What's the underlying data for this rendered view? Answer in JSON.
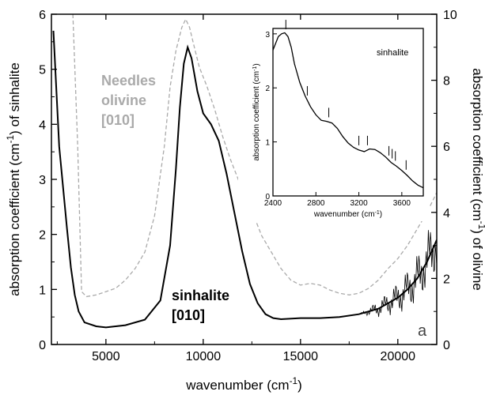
{
  "chart_data": [
    {
      "type": "line",
      "xlabel": "wavenumber (cm",
      "xlabel_sup": "-1",
      "xlabel_end": ")",
      "ylabel_left": "absorption coefficient (cm",
      "ylabel_left_sup": "-1",
      "ylabel_left_end": ") of sinhalite",
      "ylabel_right": "absorption coefficient (cm",
      "ylabel_right_sup": "-1",
      "ylabel_right_end": ") of olivine",
      "xlim": [
        2200,
        22000
      ],
      "ylim_left": [
        0,
        6
      ],
      "ylim_right": [
        0,
        10
      ],
      "x_ticks": [
        5000,
        10000,
        15000,
        20000
      ],
      "x_tick_labels": [
        "5000",
        "10000",
        "15000",
        "20000"
      ],
      "y_left_ticks": [
        0,
        1,
        2,
        3,
        4,
        5,
        6
      ],
      "y_left_tick_labels": [
        "0",
        "1",
        "2",
        "3",
        "4",
        "5",
        "6"
      ],
      "y_right_ticks": [
        0,
        2,
        4,
        6,
        8,
        10
      ],
      "y_right_tick_labels": [
        "0",
        "2",
        "4",
        "6",
        "8",
        "10"
      ],
      "panel_label": "a",
      "series": [
        {
          "name": "sinhalite [010]",
          "axis": "left",
          "color": "#000000",
          "style": "solid",
          "x": [
            2300,
            2600,
            3000,
            3200,
            3400,
            3600,
            3900,
            4500,
            5000,
            6000,
            7000,
            7800,
            8300,
            8600,
            8800,
            9000,
            9200,
            9400,
            9700,
            10000,
            10400,
            10800,
            11200,
            11600,
            12000,
            12400,
            12800,
            13200,
            13600,
            14000,
            15000,
            16000,
            17000,
            18000,
            19000,
            20000,
            20500,
            21000,
            21500,
            22000
          ],
          "y": [
            5.7,
            3.6,
            2.1,
            1.4,
            0.9,
            0.6,
            0.4,
            0.33,
            0.31,
            0.35,
            0.45,
            0.8,
            1.8,
            3.2,
            4.3,
            5.1,
            5.4,
            5.2,
            4.6,
            4.2,
            4.0,
            3.7,
            3.1,
            2.4,
            1.7,
            1.1,
            0.75,
            0.55,
            0.48,
            0.46,
            0.48,
            0.48,
            0.5,
            0.55,
            0.65,
            0.85,
            1.0,
            1.2,
            1.5,
            1.9
          ]
        },
        {
          "name": "Needles olivine [010]",
          "axis": "right",
          "color": "#aaaaaa",
          "style": "dashed",
          "x": [
            3300,
            3550,
            3750,
            4000,
            4500,
            5000,
            5500,
            6000,
            6500,
            7000,
            7500,
            8000,
            8300,
            8600,
            8900,
            9100,
            9300,
            9500,
            9800,
            10200,
            10600,
            11000,
            11400,
            11800,
            12200,
            12600,
            13000,
            13500,
            14000,
            14500,
            15000,
            15500,
            16000,
            16500,
            17000,
            17500,
            18000,
            18500,
            19000,
            19500,
            20000,
            20500,
            21000,
            21500,
            22000
          ],
          "y": [
            10,
            6.0,
            1.6,
            1.45,
            1.5,
            1.6,
            1.7,
            1.95,
            2.3,
            2.8,
            3.9,
            6.0,
            7.8,
            8.9,
            9.6,
            9.85,
            9.6,
            9.1,
            8.4,
            7.8,
            7.1,
            6.3,
            5.6,
            5.0,
            4.4,
            3.9,
            3.3,
            2.8,
            2.3,
            1.95,
            1.8,
            1.85,
            1.8,
            1.65,
            1.55,
            1.5,
            1.55,
            1.7,
            1.95,
            2.3,
            2.6,
            3.0,
            3.5,
            4.0,
            4.6
          ]
        }
      ],
      "annotations": [
        {
          "text_lines": [
            "Needles",
            "olivine",
            "[010]"
          ],
          "color": "#aaaaaa"
        },
        {
          "text_lines": [
            "sinhalite",
            "[010]"
          ],
          "color": "#000000"
        }
      ]
    },
    {
      "type": "line",
      "title": "sinhalite",
      "xlabel": "wavenumber (cm",
      "xlabel_sup": "-1",
      "xlabel_end": ")",
      "ylabel": "absorption coefficient (cm",
      "ylabel_sup": "-1",
      "ylabel_end": ")",
      "xlim": [
        2400,
        3800
      ],
      "ylim": [
        0,
        3.1
      ],
      "x_ticks": [
        2400,
        2800,
        3200,
        3600
      ],
      "x_tick_labels": [
        "2400",
        "2800",
        "3200",
        "3600"
      ],
      "y_ticks": [
        0,
        1,
        2,
        3
      ],
      "y_tick_labels": [
        "0",
        "1",
        "2",
        "3"
      ],
      "series": [
        {
          "name": "",
          "color": "#000000",
          "x": [
            2400,
            2450,
            2480,
            2510,
            2540,
            2570,
            2600,
            2650,
            2700,
            2750,
            2800,
            2850,
            2900,
            2950,
            3000,
            3050,
            3100,
            3150,
            3200,
            3250,
            3300,
            3350,
            3400,
            3450,
            3500,
            3550,
            3600,
            3650,
            3700,
            3750,
            3800
          ],
          "y": [
            2.7,
            2.95,
            3.0,
            3.02,
            2.95,
            2.75,
            2.45,
            2.1,
            1.85,
            1.65,
            1.5,
            1.4,
            1.38,
            1.35,
            1.25,
            1.1,
            0.98,
            0.9,
            0.85,
            0.82,
            0.87,
            0.86,
            0.8,
            0.72,
            0.62,
            0.55,
            0.47,
            0.38,
            0.28,
            0.2,
            0.15
          ]
        }
      ],
      "markers_x": [
        2520,
        2720,
        2920,
        3200,
        3280,
        3480,
        3510,
        3540,
        3640
      ]
    }
  ]
}
